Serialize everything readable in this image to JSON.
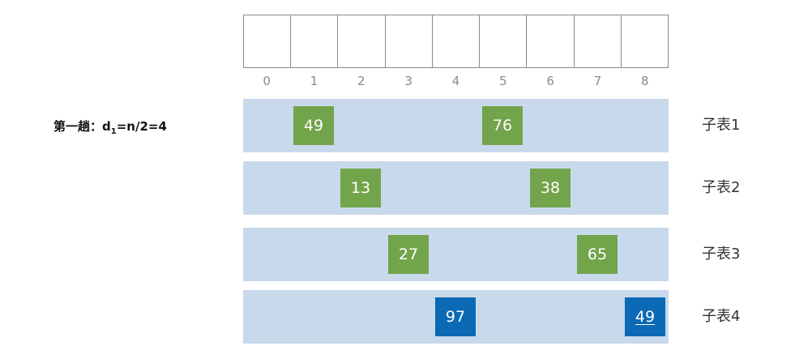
{
  "pass_label": {
    "prefix": "第一趟：d",
    "subscript": "1",
    "suffix": "=n/2=4"
  },
  "indices": [
    "0",
    "1",
    "2",
    "3",
    "4",
    "5",
    "6",
    "7",
    "8"
  ],
  "sublists": [
    {
      "name": "子表1",
      "elements": [
        {
          "value": "49",
          "index": 1,
          "color": "#72a44c",
          "underlined": false
        },
        {
          "value": "76",
          "index": 5,
          "color": "#72a44c",
          "underlined": false
        }
      ]
    },
    {
      "name": "子表2",
      "elements": [
        {
          "value": "13",
          "index": 2,
          "color": "#72a44c",
          "underlined": false
        },
        {
          "value": "38",
          "index": 6,
          "color": "#72a44c",
          "underlined": false
        }
      ]
    },
    {
      "name": "子表3",
      "elements": [
        {
          "value": "27",
          "index": 3,
          "color": "#72a44c",
          "underlined": false
        },
        {
          "value": "65",
          "index": 7,
          "color": "#72a44c",
          "underlined": false
        }
      ]
    },
    {
      "name": "子表4",
      "elements": [
        {
          "value": "97",
          "index": 4,
          "color": "#0b69b5",
          "underlined": false
        },
        {
          "value": "49",
          "index": 8,
          "color": "#0b69b5",
          "underlined": true
        }
      ]
    }
  ]
}
